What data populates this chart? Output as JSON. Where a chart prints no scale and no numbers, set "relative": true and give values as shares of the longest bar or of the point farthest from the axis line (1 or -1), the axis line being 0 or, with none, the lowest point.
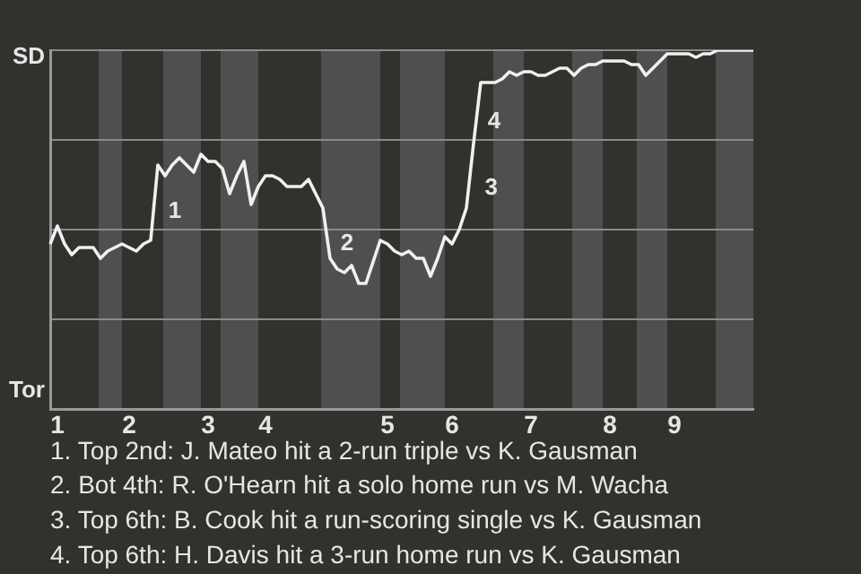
{
  "chart_data": {
    "type": "line",
    "relative": true,
    "categories": [
      null,
      "1",
      null,
      null,
      null,
      null,
      null,
      null,
      null,
      null,
      null,
      "2",
      null,
      null,
      null,
      null,
      null,
      null,
      null,
      null,
      null,
      null,
      "3",
      null,
      null,
      null,
      null,
      null,
      null,
      null,
      "4",
      null,
      null,
      null,
      null,
      null,
      null,
      null,
      null,
      null,
      null,
      null,
      null,
      null,
      null,
      null,
      null,
      "5",
      null,
      null,
      null,
      null,
      null,
      null,
      null,
      null,
      "6",
      null,
      null,
      null,
      null,
      null,
      null,
      null,
      null,
      null,
      null,
      "7",
      null,
      null,
      null,
      null,
      null,
      null,
      null,
      null,
      null,
      null,
      "8",
      null,
      null,
      null,
      null,
      null,
      null,
      null,
      null,
      "9",
      null,
      null,
      null,
      null,
      null,
      null,
      null,
      null,
      null,
      null,
      null
    ],
    "series": [
      {
        "color": "#f0f0f0",
        "values": [
          0.46,
          0.51,
          0.46,
          0.43,
          0.45,
          0.45,
          0.45,
          0.42,
          0.44,
          0.45,
          0.46,
          0.45,
          0.44,
          0.46,
          0.47,
          0.68,
          0.65,
          0.68,
          0.7,
          0.68,
          0.66,
          0.71,
          0.69,
          0.69,
          0.67,
          0.6,
          0.65,
          0.69,
          0.57,
          0.62,
          0.65,
          0.65,
          0.64,
          0.62,
          0.62,
          0.62,
          0.64,
          0.6,
          0.56,
          0.42,
          0.39,
          0.38,
          0.4,
          0.35,
          0.35,
          0.41,
          0.47,
          0.46,
          0.44,
          0.43,
          0.44,
          0.42,
          0.42,
          0.37,
          0.42,
          0.48,
          0.46,
          0.5,
          0.56,
          0.74,
          0.91,
          0.91,
          0.91,
          0.92,
          0.94,
          0.93,
          0.94,
          0.94,
          0.93,
          0.93,
          0.94,
          0.95,
          0.95,
          0.93,
          0.95,
          0.96,
          0.96,
          0.97,
          0.97,
          0.97,
          0.97,
          0.96,
          0.96,
          0.93,
          0.95,
          0.97,
          0.99,
          0.99,
          0.99,
          0.99,
          0.98,
          0.99,
          0.99,
          1.0,
          1.0,
          1.0,
          1.0,
          1.0,
          1.0
        ]
      }
    ],
    "grid": "y",
    "marker": "none",
    "annotations": [
      "SD",
      "Tor",
      "1",
      "2",
      "3",
      "4",
      "1. Top 2nd: J. Mateo hit a 2-run triple vs K. Gausman",
      "2. Bot 4th: R. O'Hearn hit a solo home run vs M. Wacha",
      "3. Top 6th: B. Cook hit a run-scoring single vs K. Gausman",
      "4. Top 6th: H. Davis hit a 3-run home run vs K. Gausman"
    ]
  }
}
